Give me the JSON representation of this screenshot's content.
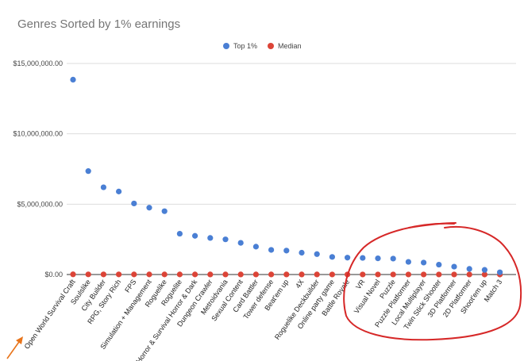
{
  "chart_data": {
    "type": "scatter",
    "title": "Genres Sorted by 1% earnings",
    "legend_position": "top",
    "grid": "horizontal",
    "xlabel": "",
    "ylabel": "",
    "ylim": [
      0,
      15000000
    ],
    "yticks": [
      0,
      5000000,
      10000000,
      15000000
    ],
    "ytick_labels": [
      "$0.00",
      "$5,000,000.00",
      "$10,000,000.00",
      "$15,000,000.00"
    ],
    "categories": [
      "Open World Survival Craft",
      "Soulslike",
      "City Builder",
      "RPG, Story Rich",
      "FPS",
      "Simulation + Management",
      "Roguelike",
      "Roguelite",
      "Horror & Survival Horror & Dark",
      "Dungeon Crawler",
      "Metroidvania",
      "Sexual Content",
      "Card Battler",
      "Tower defense",
      "Beat'em up",
      "4X",
      "Roguelike Deckbuilder",
      "Online party game",
      "Battle Royale",
      "VR",
      "Visual Novel",
      "Puzzle",
      "Puzzle Platformer",
      "Local Multiplayer",
      "Twin Stick Shooter",
      "3D Platformer",
      "2D Platformer",
      "Shoot'em up",
      "Match 3"
    ],
    "series": [
      {
        "name": "Top 1%",
        "color": "#4a7fd4",
        "values": [
          13850000,
          7350000,
          6200000,
          5900000,
          5050000,
          4750000,
          4500000,
          2900000,
          2750000,
          2600000,
          2500000,
          2250000,
          1980000,
          1750000,
          1700000,
          1550000,
          1450000,
          1250000,
          1200000,
          1180000,
          1150000,
          1130000,
          900000,
          850000,
          700000,
          560000,
          400000,
          330000,
          160000
        ]
      },
      {
        "name": "Median",
        "color": "#dc4437",
        "values": [
          12000,
          10000,
          9000,
          9000,
          8000,
          8000,
          8000,
          7000,
          7000,
          6000,
          6000,
          6000,
          5000,
          5000,
          5000,
          5000,
          5000,
          4000,
          4000,
          4000,
          4000,
          4000,
          3000,
          3000,
          3000,
          3000,
          3000,
          2000,
          2000
        ]
      }
    ]
  },
  "annotations": {
    "circle_color": "#d62828",
    "arrow_color": "#e8741a"
  }
}
